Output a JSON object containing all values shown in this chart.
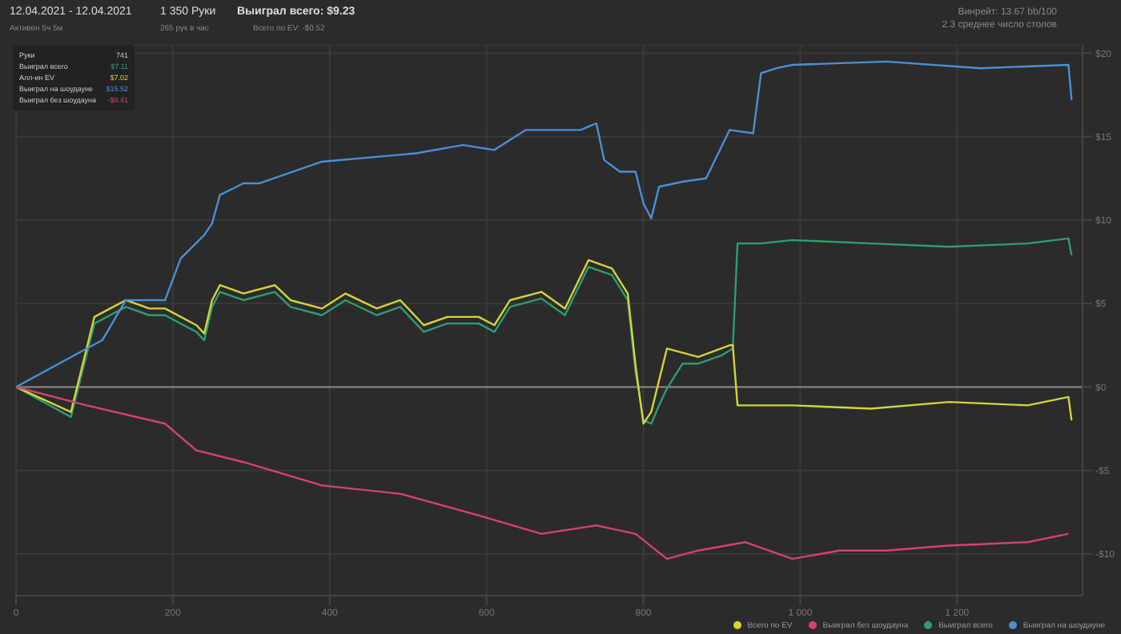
{
  "chart_data": {
    "type": "line",
    "title": "12.04.2021 - 12.04.2021",
    "subtitle": "Активен 5ч 5м",
    "annotations": [
      "1 350 Руки",
      "265 рук в час",
      "Выиграл всего: $9.23",
      "Всего по EV: -$0.52",
      "Винрейт: 13.67 bb/100",
      "2.3 среднее число столов",
      "Руки",
      "741",
      "Выиграл всего",
      "$7.11",
      "Алл-ин EV",
      "$7.02",
      "Выиграл на шоудауне",
      "$15.52",
      "Выиграл без шоудауна",
      "-$8.41"
    ],
    "xlim": [
      0,
      1360
    ],
    "xticks": [
      0,
      200,
      400,
      600,
      800,
      {
        "value": 1000,
        "label": "1 000"
      },
      {
        "value": 1200,
        "label": "1 200"
      }
    ],
    "ylim": [
      -12.5,
      20.5
    ],
    "yticks": [
      {
        "value": -10,
        "label": "-$10"
      },
      {
        "value": -5,
        "label": "-$5"
      },
      {
        "value": 0,
        "label": "$0"
      },
      {
        "value": 5,
        "label": "$5"
      },
      {
        "value": 10,
        "label": "$10"
      },
      {
        "value": 15,
        "label": "$15"
      },
      {
        "value": 20,
        "label": "$20"
      }
    ],
    "grid": true,
    "legend": "bottom right",
    "marker": "none",
    "line_style": "solid",
    "ref_lines": [
      {
        "axis": "y",
        "value": 0,
        "color": "#8a8a8a"
      }
    ],
    "series": [
      {
        "name": "Выиграл всего",
        "color": "#2e9e6e",
        "x": [
          0,
          70,
          100,
          120,
          140,
          170,
          190,
          230,
          240,
          250,
          260,
          290,
          330,
          350,
          390,
          420,
          460,
          490,
          520,
          550,
          590,
          610,
          630,
          670,
          700,
          730,
          760,
          780,
          790,
          800,
          810,
          820,
          830,
          850,
          870,
          900,
          914,
          920,
          950,
          990,
          1090,
          1190,
          1290,
          1342,
          1346
        ],
        "values": [
          0,
          -1.8,
          3.8,
          4.3,
          4.8,
          4.3,
          4.3,
          3.3,
          2.8,
          4.8,
          5.7,
          5.2,
          5.7,
          4.8,
          4.3,
          5.2,
          4.3,
          4.8,
          3.3,
          3.8,
          3.8,
          3.3,
          4.8,
          5.3,
          4.3,
          7.2,
          6.7,
          5.2,
          0.9,
          -2,
          -2.2,
          -1.1,
          -0.1,
          1.4,
          1.4,
          1.9,
          2.3,
          8.6,
          8.6,
          8.8,
          8.6,
          8.4,
          8.6,
          8.9,
          7.9
        ]
      },
      {
        "name": "Всего по EV",
        "color": "#d4d43a",
        "x": [
          0,
          70,
          100,
          120,
          140,
          170,
          190,
          230,
          240,
          250,
          260,
          290,
          330,
          350,
          390,
          420,
          460,
          490,
          520,
          550,
          590,
          610,
          630,
          670,
          700,
          730,
          760,
          780,
          790,
          800,
          810,
          830,
          870,
          910,
          914,
          920,
          990,
          1090,
          1190,
          1290,
          1342,
          1346
        ],
        "values": [
          0,
          -1.5,
          4.2,
          4.7,
          5.2,
          4.7,
          4.7,
          3.7,
          3.2,
          5.2,
          6.1,
          5.6,
          6.1,
          5.2,
          4.7,
          5.6,
          4.7,
          5.2,
          3.7,
          4.2,
          4.2,
          3.7,
          5.2,
          5.7,
          4.7,
          7.6,
          7.1,
          5.6,
          1.3,
          -2.2,
          -1.5,
          2.3,
          1.8,
          2.5,
          2.5,
          -1.1,
          -1.1,
          -1.3,
          -0.9,
          -1.1,
          -0.6,
          -2
        ]
      },
      {
        "name": "Выиграл на шоудауне",
        "color": "#4a8fd6",
        "x": [
          0,
          90,
          110,
          140,
          190,
          210,
          240,
          250,
          260,
          290,
          310,
          390,
          510,
          570,
          610,
          650,
          720,
          730,
          740,
          750,
          770,
          790,
          800,
          810,
          820,
          850,
          880,
          910,
          940,
          950,
          970,
          990,
          1110,
          1230,
          1342,
          1346
        ],
        "values": [
          0,
          2.3,
          2.8,
          5.2,
          5.2,
          7.7,
          9.1,
          9.8,
          11.5,
          12.2,
          12.2,
          13.5,
          14,
          14.5,
          14.2,
          15.4,
          15.4,
          15.6,
          15.8,
          13.6,
          12.9,
          12.9,
          11,
          10.1,
          12,
          12.3,
          12.5,
          15.4,
          15.2,
          18.8,
          19.1,
          19.3,
          19.5,
          19.1,
          19.3,
          17.2
        ]
      },
      {
        "name": "Выиграл без шоудауна",
        "color": "#d6426e",
        "x": [
          0,
          90,
          190,
          230,
          290,
          390,
          490,
          590,
          670,
          740,
          790,
          830,
          870,
          930,
          990,
          1050,
          1110,
          1190,
          1290,
          1342
        ],
        "values": [
          0,
          -1.1,
          -2.2,
          -3.8,
          -4.5,
          -5.9,
          -6.4,
          -7.7,
          -8.8,
          -8.3,
          -8.8,
          -10.3,
          -9.8,
          -9.3,
          -10.3,
          -9.8,
          -9.8,
          -9.5,
          -9.3,
          -8.8
        ]
      }
    ]
  }
}
